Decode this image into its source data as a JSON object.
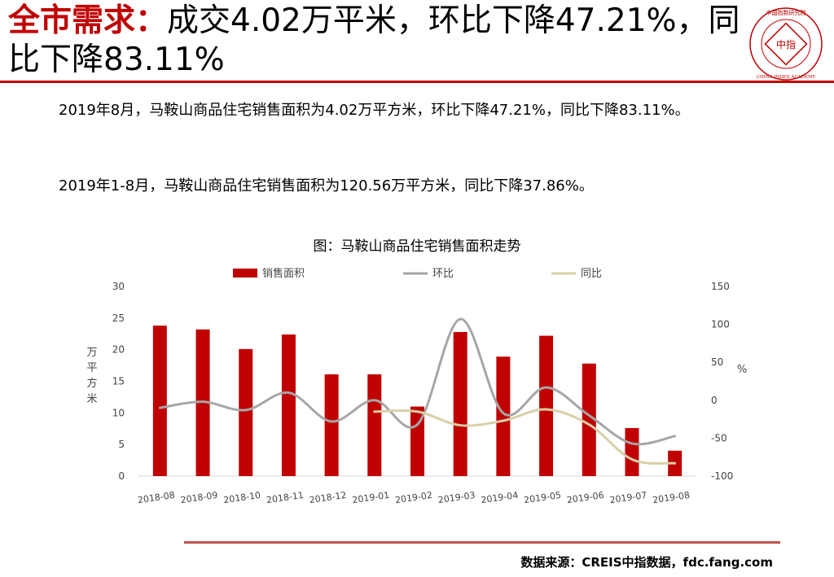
{
  "slide": {
    "title_keyword": "全市需求：",
    "title_rest": "成交4.02万平米，环比下降47.21%，同比下降83.11%",
    "paragraph1": "2019年8月，马鞍山商品住宅销售面积为4.02万平方米，环比下降47.21%，同比下降83.11%。",
    "paragraph2": "2019年1-8月，马鞍山商品住宅销售面积为120.56万平方米，同比下降37.86%。",
    "source": "数据来源：CREIS中指数据，fdc.fang.com",
    "logo_text": "中国指数研究院 CHINA INDEX ACADEMY",
    "logo_center": "中指"
  },
  "colors": {
    "accent": "#c00000",
    "bar": "#c00000",
    "mom_line": "#a6a6a6",
    "yoy_line": "#d9cfa8",
    "bottom_rule": "#c0504d"
  },
  "chart_data": {
    "type": "bar",
    "title": "图：马鞍山商品住宅销售面积走势",
    "categories": [
      "2018-08",
      "2018-09",
      "2018-10",
      "2018-11",
      "2018-12",
      "2019-01",
      "2019-02",
      "2019-03",
      "2019-04",
      "2019-05",
      "2019-06",
      "2019-07",
      "2019-08"
    ],
    "ylabel": "万平方米",
    "ylabel_right": "%",
    "ylim": [
      0,
      30
    ],
    "yticks": [
      0,
      5,
      10,
      15,
      20,
      25,
      30
    ],
    "ylim_right": [
      -100,
      150
    ],
    "yticks_right": [
      -100,
      -50,
      0,
      50,
      100,
      150
    ],
    "legend_position": "top",
    "series": [
      {
        "name": "销售面积",
        "type": "bar",
        "axis": "left",
        "values": [
          23.8,
          23.2,
          20.1,
          22.4,
          16.1,
          16.1,
          11.0,
          22.8,
          18.9,
          22.2,
          17.8,
          7.6,
          4.02
        ]
      },
      {
        "name": "环比",
        "type": "line",
        "axis": "right",
        "values": [
          -10,
          -2,
          -13,
          10,
          -28,
          0,
          -32,
          107,
          -17,
          17,
          -20,
          -57,
          -47.21
        ]
      },
      {
        "name": "同比",
        "type": "line",
        "axis": "right",
        "values": [
          null,
          null,
          null,
          null,
          null,
          -15,
          -15,
          -33,
          -27,
          -12,
          -32,
          -78,
          -83.11
        ]
      }
    ]
  }
}
